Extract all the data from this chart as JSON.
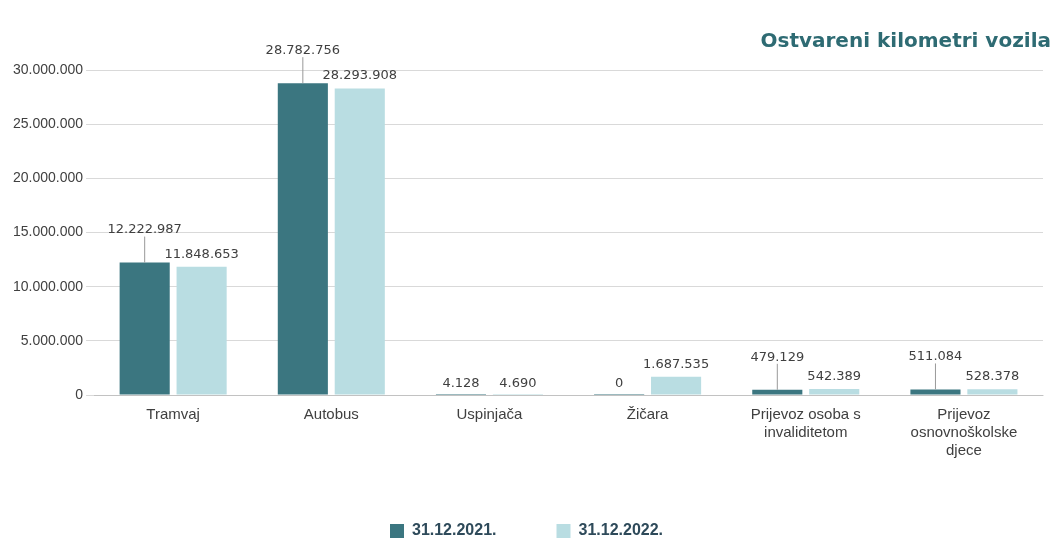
{
  "chart_data": {
    "type": "bar",
    "title": "Ostvareni kilometri vozila",
    "categories": [
      "Tramvaj",
      "Autobus",
      "Uspinjača",
      "Žičara",
      "Prijevoz osoba s invaliditetom",
      "Prijevoz osnovnoškolske djece"
    ],
    "series": [
      {
        "name": "31.12.2021.",
        "color": "#3b7680",
        "values": [
          12222987,
          28782756,
          4128,
          0,
          479129,
          511084
        ],
        "value_labels": [
          "12.222.987",
          "28.782.756",
          "4.128",
          "0",
          "479.129",
          "511.084"
        ]
      },
      {
        "name": "31.12.2022.",
        "color": "#b9dde2",
        "values": [
          11848653,
          28293908,
          4690,
          1687535,
          542389,
          528378
        ],
        "value_labels": [
          "11.848.653",
          "28.293.908",
          "4.690",
          "1.687.535",
          "542.389",
          "528.378"
        ]
      }
    ],
    "ylim": [
      0,
      30000000
    ],
    "yticks": [
      {
        "value": 0,
        "label": "0"
      },
      {
        "value": 5000000,
        "label": "5.000.000"
      },
      {
        "value": 10000000,
        "label": "10.000.000"
      },
      {
        "value": 15000000,
        "label": "15.000.000"
      },
      {
        "value": 20000000,
        "label": "20.000.000"
      },
      {
        "value": 25000000,
        "label": "25.000.000"
      },
      {
        "value": 30000000,
        "label": "30.000.000"
      }
    ],
    "grid": "y",
    "legend": "bottom"
  }
}
